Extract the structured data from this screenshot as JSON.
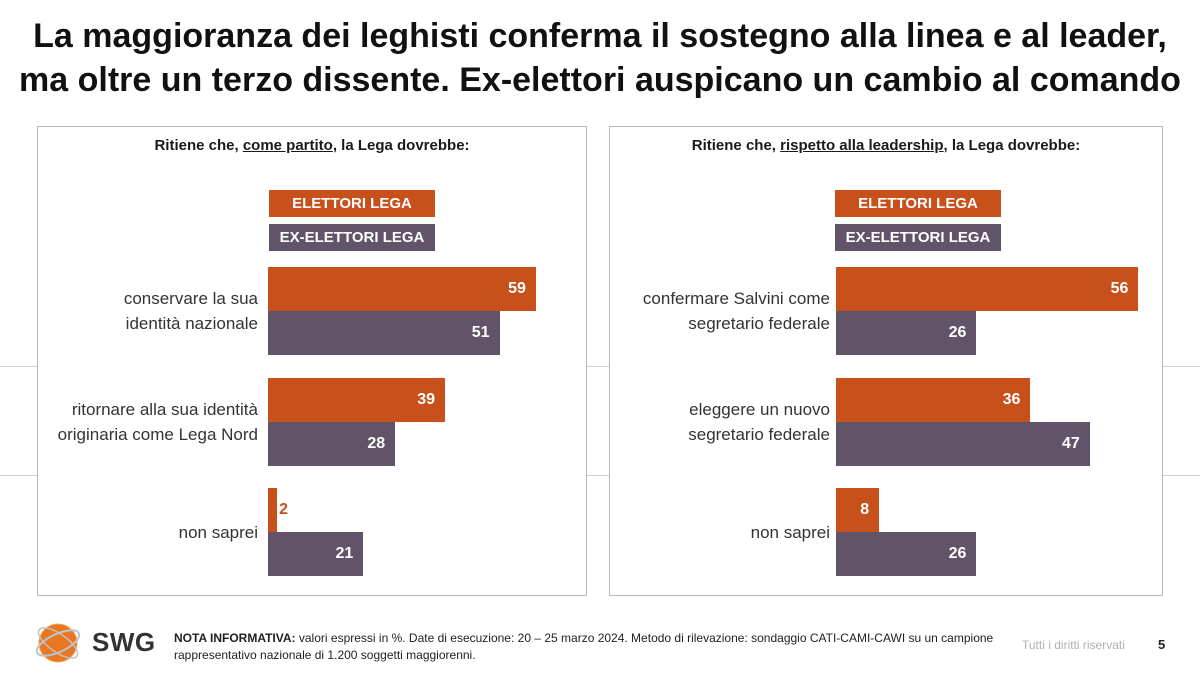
{
  "header": {
    "title_line1": "La maggioranza dei leghisti conferma il sostegno alla linea e al leader,",
    "title_line2": "ma oltre un terzo dissente. Ex-elettori auspicano un cambio al comando"
  },
  "colors": {
    "elettori": "#c8501a",
    "ex_elettori": "#625468"
  },
  "legend": {
    "series1": "ELETTORI LEGA",
    "series2": "EX-ELETTORI LEGA"
  },
  "chart_data": [
    {
      "type": "bar",
      "orientation": "horizontal",
      "title_pre": "Ritiene che, ",
      "title_em": "come partito",
      "title_post": ", la Lega dovrebbe:",
      "categories": [
        "conservare la sua identità nazionale",
        "ritornare alla sua identità originaria come Lega Nord",
        "non saprei"
      ],
      "category_lines": [
        [
          "conservare la sua",
          "identità nazionale"
        ],
        [
          "ritornare alla sua identità",
          "originaria come Lega Nord"
        ],
        [
          "non saprei"
        ]
      ],
      "series": [
        {
          "name": "ELETTORI LEGA",
          "values": [
            59,
            39,
            2
          ]
        },
        {
          "name": "EX-ELETTORI LEGA",
          "values": [
            51,
            28,
            21
          ]
        }
      ],
      "unit": "%"
    },
    {
      "type": "bar",
      "orientation": "horizontal",
      "title_pre": "Ritiene che, ",
      "title_em": "rispetto alla leadership",
      "title_post": ", la Lega dovrebbe:",
      "categories": [
        "confermare Salvini come segretario federale",
        "eleggere un nuovo segretario federale",
        "non saprei"
      ],
      "category_lines": [
        [
          "confermare Salvini come",
          "segretario federale"
        ],
        [
          "eleggere un nuovo",
          "segretario federale"
        ],
        [
          "non saprei"
        ]
      ],
      "series": [
        {
          "name": "ELETTORI LEGA",
          "values": [
            56,
            36,
            8
          ]
        },
        {
          "name": "EX-ELETTORI LEGA",
          "values": [
            26,
            47,
            26
          ]
        }
      ],
      "unit": "%"
    }
  ],
  "footer": {
    "note_label": "NOTA INFORMATIVA:",
    "note_text": " valori espressi in %. Date di esecuzione: 20 – 25 marzo 2024. Metodo di rilevazione: sondaggio CATI-CAMI-CAWI su un campione rappresentativo nazionale di 1.200 soggetti maggiorenni.",
    "rights": "Tutti i diritti riservati",
    "page_number": "5",
    "brand": "SWG"
  }
}
